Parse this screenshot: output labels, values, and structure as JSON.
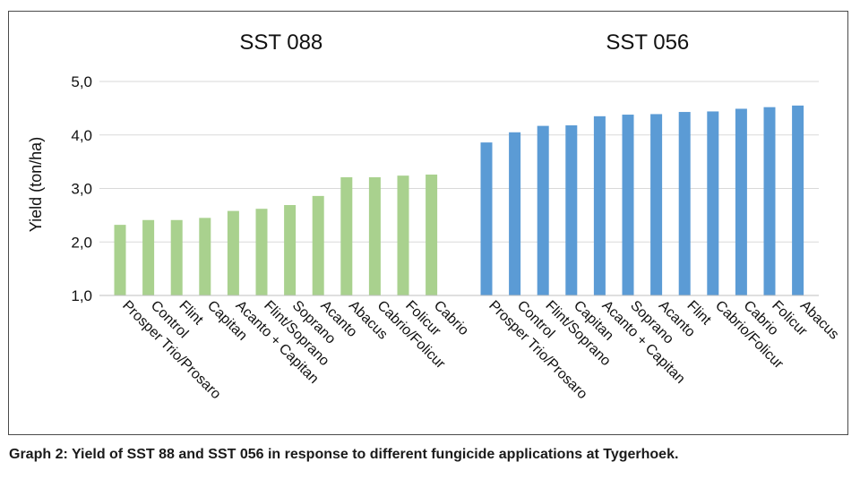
{
  "caption": "Graph 2: Yield of SST 88 and SST 056 in response to different fungicide applications at Tygerhoek.",
  "chart_data": {
    "type": "bar",
    "ylabel": "Yield (ton/ha)",
    "ylim": [
      1.0,
      5.0
    ],
    "yticks": [
      "1,0",
      "2,0",
      "3,0",
      "4,0",
      "5,0"
    ],
    "grid": true,
    "groups": [
      {
        "name": "SST 088",
        "color": "#a9d18e",
        "categories": [
          "Prosper Trio/Prosaro",
          "Control",
          "Flint",
          "Capitan",
          "Acanto + Capitan",
          "Flint/Soprano",
          "Soprano",
          "Acanto",
          "Abacus",
          "Cabrio/Folicur",
          "Folicur",
          "Cabrio"
        ],
        "values": [
          2.32,
          2.41,
          2.41,
          2.45,
          2.58,
          2.62,
          2.69,
          2.86,
          3.21,
          3.21,
          3.24,
          3.26
        ]
      },
      {
        "name": "SST 056",
        "color": "#5b9bd5",
        "categories": [
          "Prosper Trio/Prosaro",
          "Control",
          "Flint/Soprano",
          "Capitan",
          "Acanto + Capitan",
          "Soprano",
          "Acanto",
          "Flint",
          "Cabrio/Folicur",
          "Cabrio",
          "Folicur",
          "Abacus"
        ],
        "values": [
          3.86,
          4.05,
          4.17,
          4.18,
          4.35,
          4.38,
          4.39,
          4.43,
          4.44,
          4.49,
          4.52,
          4.55
        ]
      }
    ]
  }
}
